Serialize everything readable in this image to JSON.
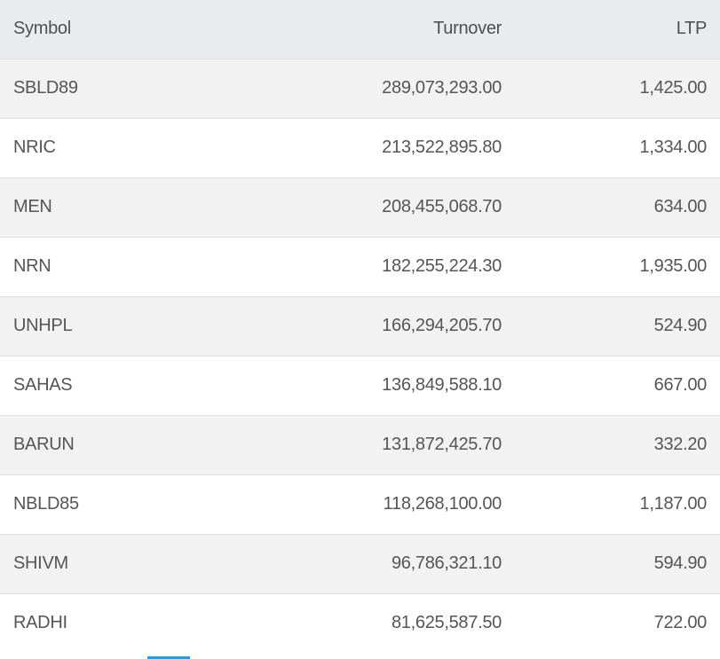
{
  "table": {
    "headers": [
      "Symbol",
      "Turnover",
      "LTP"
    ],
    "rows": [
      [
        "SBLD89",
        "289,073,293.00",
        "1,425.00"
      ],
      [
        "NRIC",
        "213,522,895.80",
        "1,334.00"
      ],
      [
        "MEN",
        "208,455,068.70",
        "634.00"
      ],
      [
        "NRN",
        "182,255,224.30",
        "1,935.00"
      ],
      [
        "UNHPL",
        "166,294,205.70",
        "524.90"
      ],
      [
        "SAHAS",
        "136,849,588.10",
        "667.00"
      ],
      [
        "BARUN",
        "131,872,425.70",
        "332.20"
      ],
      [
        "NBLD85",
        "118,268,100.00",
        "1,187.00"
      ],
      [
        "SHIVM",
        "96,786,321.10",
        "594.90"
      ],
      [
        "RADHI",
        "81,625,587.50",
        "722.00"
      ]
    ]
  },
  "colors": {
    "accent": "#2d9be0",
    "header_bg": "#e9ecef",
    "stripe": "#f2f2f2"
  }
}
